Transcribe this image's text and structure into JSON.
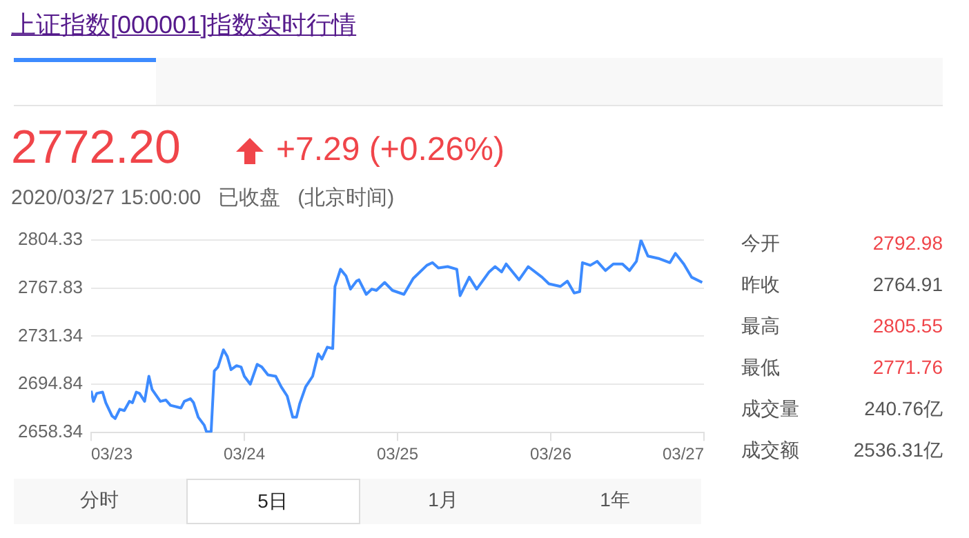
{
  "chart_data": {
    "type": "line",
    "title": "上证指数[000001]指数实时行情",
    "annotations": [
      "2772.20",
      "+7.29 (+0.26%)",
      "2020/03/27 15:00:00",
      "已收盘",
      "(北京时间)",
      "今开",
      "2792.98",
      "昨收",
      "2764.91",
      "最高",
      "2805.55",
      "最低",
      "2771.76",
      "成交量",
      "240.76亿",
      "成交额",
      "2536.31亿",
      "分时",
      "5日",
      "1月",
      "1年"
    ],
    "color": "#3d8bff",
    "x": [
      "--03-23T00:00",
      "--03-23T00:22",
      "--03-23T00:52",
      "--03-23T01:48",
      "--03-23T02:18",
      "--03-23T03:16",
      "--03-23T03:46",
      "--03-23T04:29",
      "--03-23T05:12",
      "--03-23T06:00",
      "--03-23T06:29",
      "--03-23T07:05",
      "--03-23T07:35",
      "--03-23T08:23",
      "--03-23T09:03",
      "--03-23T09:33",
      "--03-23T10:51",
      "--03-23T11:43",
      "--03-23T12:26",
      "--03-23T14:05",
      "--03-23T14:36",
      "--03-23T15:33",
      "--03-23T16:03",
      "--03-23T16:47",
      "--03-23T17:43",
      "--03-23T18:04",
      "--03-23T18:48",
      "--03-23T19:18",
      "--03-23T19:52",
      "--03-23T20:44",
      "--03-23T21:20",
      "--03-23T21:55",
      "--03-23T22:47",
      "--03-23T23:30",
      "--03-24T00:00",
      "--03-24T00:56",
      "--03-24T02:01",
      "--03-24T02:44",
      "--03-24T03:42",
      "--03-24T04:55",
      "--03-24T05:47",
      "--03-24T06:43",
      "--03-24T07:35",
      "--03-24T08:10",
      "--03-24T08:40",
      "--03-24T09:36",
      "--03-24T10:42",
      "--03-24T11:34",
      "--03-24T12:09",
      "--03-24T13:00",
      "--03-24T13:51",
      "--03-24T14:12",
      "--03-24T15:04",
      "--03-24T15:55",
      "--03-24T16:38",
      "--03-24T17:34",
      "--03-24T17:57",
      "--03-24T19:06",
      "--03-24T19:58",
      "--03-24T20:41",
      "--03-24T21:59",
      "--03-24T23:12",
      "--03-25T01:00",
      "--03-25T02:27",
      "--03-25T04:36",
      "--03-25T05:28",
      "--03-25T06:24",
      "--03-25T07:51",
      "--03-25T09:17",
      "--03-25T09:48",
      "--03-25T11:14",
      "--03-25T12:24",
      "--03-25T14:21",
      "--03-25T15:17",
      "--03-25T16:18",
      "--03-25T17:01",
      "--03-25T19:02",
      "--03-25T20:28",
      "--03-25T22:38",
      "--03-25T23:43",
      "--03-26T01:31",
      "--03-26T02:36",
      "--03-26T03:40",
      "--03-26T04:32",
      "--03-26T04:58",
      "--03-26T06:12",
      "--03-26T07:16",
      "--03-26T08:34",
      "--03-26T09:48",
      "--03-26T11:14",
      "--03-26T12:20",
      "--03-26T13:25",
      "--03-26T14:08",
      "--03-26T15:13",
      "--03-26T17:01",
      "--03-26T18:40",
      "--03-26T19:32",
      "--03-26T20:50",
      "--03-26T22:03",
      "--03-26T23:43"
    ],
    "values": [
      2690,
      2682,
      2688,
      2689,
      2681,
      2671,
      2669,
      2676,
      2675,
      2682,
      2681,
      2689,
      2688,
      2682,
      2701,
      2691,
      2682,
      2683,
      2679,
      2677,
      2682,
      2684,
      2681,
      2670,
      2664,
      2659,
      2659,
      2705,
      2708,
      2721,
      2716,
      2706,
      2709,
      2708,
      2701,
      2695,
      2710,
      2708,
      2702,
      2701,
      2693,
      2686,
      2670,
      2670,
      2680,
      2693,
      2701,
      2718,
      2714,
      2723,
      2722,
      2769,
      2782,
      2777,
      2767,
      2773,
      2774,
      2763,
      2767,
      2766,
      2772,
      2766,
      2763,
      2775,
      2785,
      2787,
      2783,
      2784,
      2782,
      2762,
      2776,
      2767,
      2780,
      2784,
      2780,
      2786,
      2774,
      2784,
      2776,
      2771,
      2769,
      2773,
      2764,
      2765,
      2787,
      2785,
      2788,
      2781,
      2786,
      2786,
      2781,
      2788,
      2804,
      2792,
      2790,
      2787,
      2794,
      2786,
      2776,
      2772
    ],
    "xlim": [
      "--03-23",
      "--03-27"
    ],
    "xticks": [
      {
        "value": "--03-23",
        "label": "03/23"
      },
      {
        "value": "--03-24",
        "label": "03/24"
      },
      {
        "value": "--03-25",
        "label": "03/25"
      },
      {
        "value": "--03-26",
        "label": "03/26"
      },
      {
        "value": "--03-27",
        "label": "03/27"
      }
    ],
    "ylim": [
      2658.34,
      2804.33
    ],
    "yticks": [
      2658.34,
      2694.84,
      2731.34,
      2767.83,
      2804.33
    ],
    "grid": "y",
    "legend": false,
    "marker": "none",
    "line_style": "solid"
  }
}
